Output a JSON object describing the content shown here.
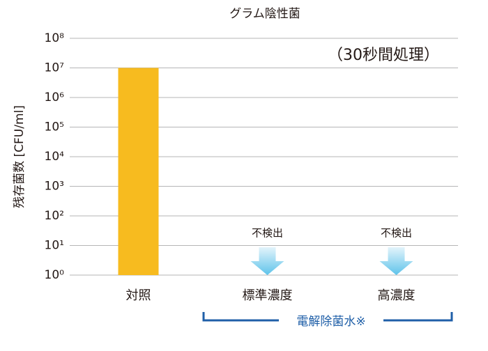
{
  "chart_data": {
    "type": "bar",
    "title": "グラム陰性菌",
    "subtitle": "（30秒間処理）",
    "ylabel": "残存菌数 [CFU/ml]",
    "categories": [
      "対照",
      "標準濃度",
      "高濃度"
    ],
    "values": [
      10000000,
      null,
      null
    ],
    "value_labels": [
      null,
      "不検出",
      "不検出"
    ],
    "group_label": "電解除菌水※",
    "color": "#f7bb1f",
    "log_scale": true,
    "grid": true,
    "ylim": [
      1,
      100000000
    ],
    "yticks": [
      {
        "value": 1,
        "label": "10⁰"
      },
      {
        "value": 10,
        "label": "10¹"
      },
      {
        "value": 100,
        "label": "10²"
      },
      {
        "value": 1000,
        "label": "10³"
      },
      {
        "value": 10000,
        "label": "10⁴"
      },
      {
        "value": 100000,
        "label": "10⁵"
      },
      {
        "value": 1000000,
        "label": "10⁶"
      },
      {
        "value": 10000000,
        "label": "10⁷"
      },
      {
        "value": 100000000,
        "label": "10⁸"
      }
    ]
  }
}
